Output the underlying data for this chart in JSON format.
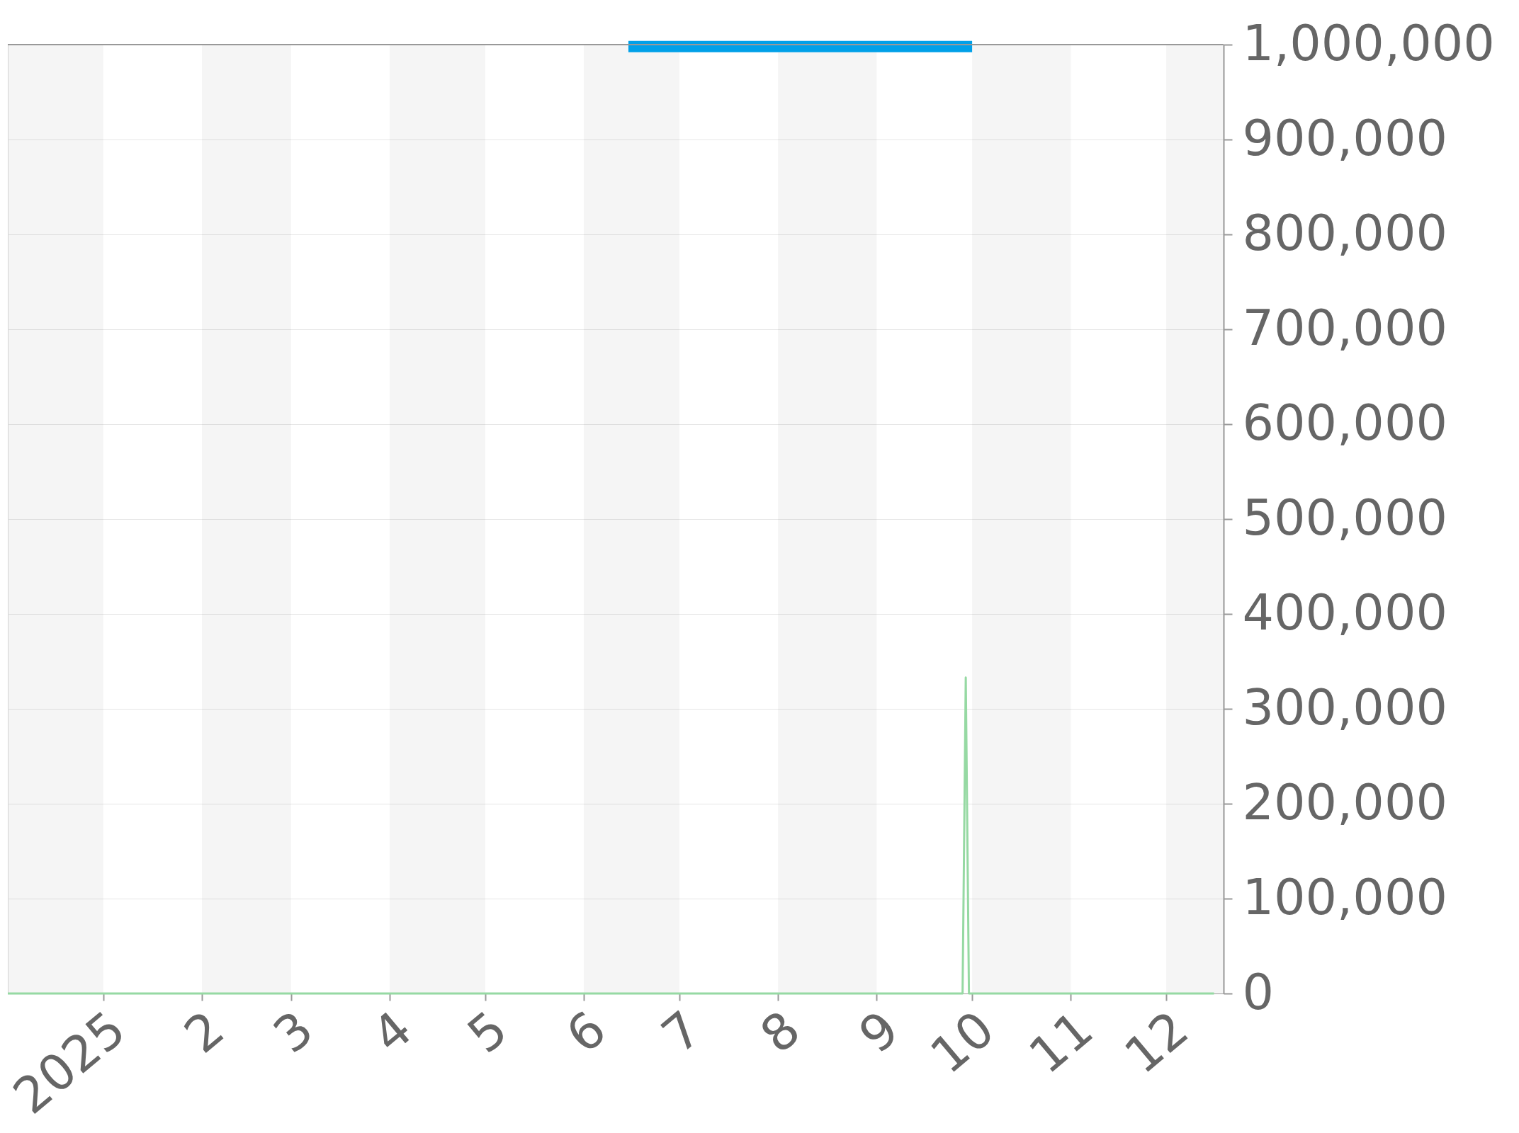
{
  "chart_data": {
    "type": "line",
    "xlim": [
      "2024-12-02",
      "2025-12-19"
    ],
    "xticks": [
      {
        "value": "2025-01-01",
        "label": "2025"
      },
      {
        "value": "2025-02-01",
        "label": "2"
      },
      {
        "value": "2025-03-01",
        "label": "3"
      },
      {
        "value": "2025-04-01",
        "label": "4"
      },
      {
        "value": "2025-05-01",
        "label": "5"
      },
      {
        "value": "2025-06-01",
        "label": "6"
      },
      {
        "value": "2025-07-01",
        "label": "7"
      },
      {
        "value": "2025-08-01",
        "label": "8"
      },
      {
        "value": "2025-09-01",
        "label": "9"
      },
      {
        "value": "2025-10-01",
        "label": "10"
      },
      {
        "value": "2025-11-01",
        "label": "11"
      },
      {
        "value": "2025-12-01",
        "label": "12"
      }
    ],
    "ylim": [
      0,
      1000000
    ],
    "yticks": [
      0,
      {
        "value": 100000,
        "label": "100,000"
      },
      {
        "value": 200000,
        "label": "200,000"
      },
      {
        "value": 300000,
        "label": "300,000"
      },
      {
        "value": 400000,
        "label": "400,000"
      },
      {
        "value": 500000,
        "label": "500,000"
      },
      {
        "value": 600000,
        "label": "600,000"
      },
      {
        "value": 700000,
        "label": "700,000"
      },
      {
        "value": 800000,
        "label": "800,000"
      },
      {
        "value": 900000,
        "label": "900,000"
      },
      {
        "value": 1000000,
        "label": "1,000,000"
      }
    ],
    "grid": "y",
    "series": [
      {
        "color": "#00a0e8",
        "x": [
          "2025-06-15",
          "2025-10-01"
        ],
        "values": [
          998000,
          998000
        ]
      },
      {
        "color": "#96d9a3",
        "x": [
          "2024-12-02",
          "2025-09-28",
          "2025-09-29",
          "2025-09-30",
          "2025-12-16"
        ],
        "values": [
          0,
          0,
          333000,
          0,
          0
        ]
      }
    ],
    "bands": [
      {
        "axis": "x",
        "from": "2024-12-02",
        "to": "2025-01-01",
        "color": "#f5f5f5"
      },
      {
        "axis": "x",
        "from": "2025-02-01",
        "to": "2025-03-01",
        "color": "#f5f5f5"
      },
      {
        "axis": "x",
        "from": "2025-04-01",
        "to": "2025-05-01",
        "color": "#f5f5f5"
      },
      {
        "axis": "x",
        "from": "2025-06-01",
        "to": "2025-07-01",
        "color": "#f5f5f5"
      },
      {
        "axis": "x",
        "from": "2025-08-01",
        "to": "2025-09-01",
        "color": "#f5f5f5"
      },
      {
        "axis": "x",
        "from": "2025-10-01",
        "to": "2025-11-01",
        "color": "#f5f5f5"
      },
      {
        "axis": "x",
        "from": "2025-12-01",
        "to": "2025-12-19",
        "color": "#f5f5f5"
      }
    ]
  }
}
